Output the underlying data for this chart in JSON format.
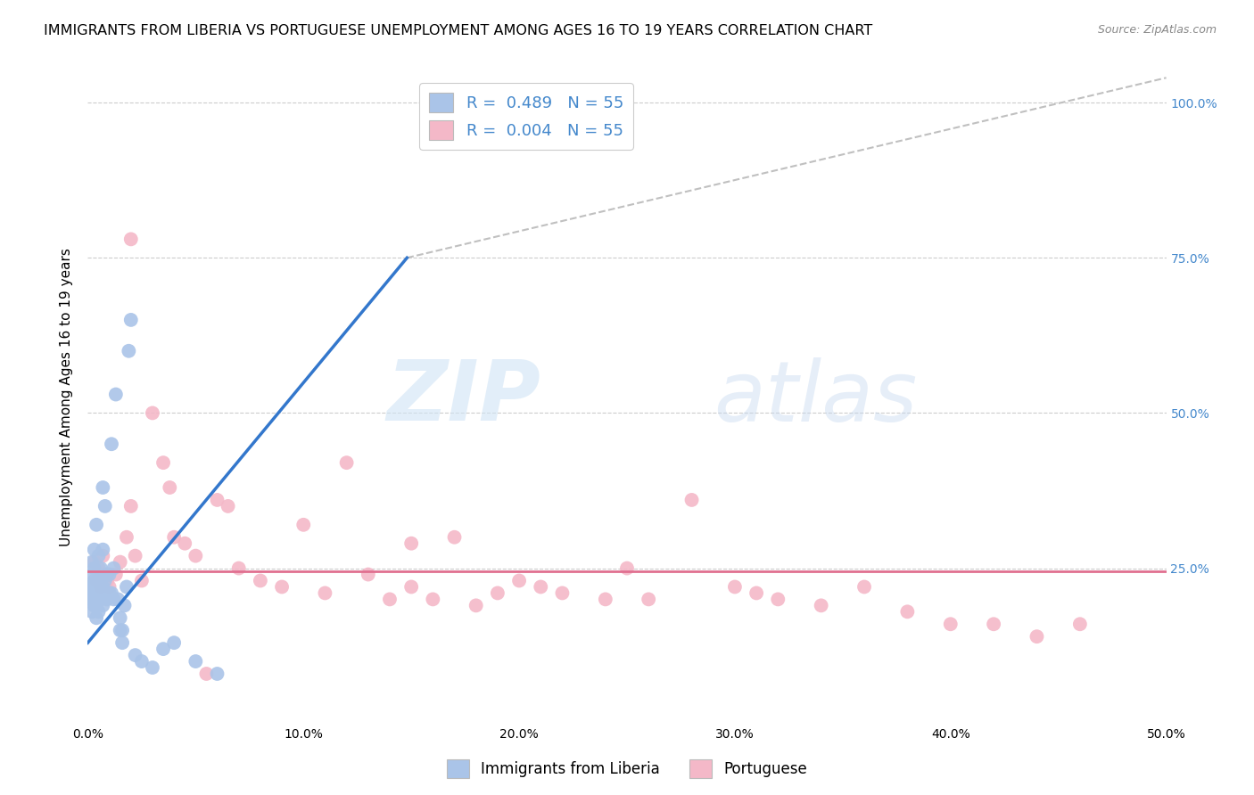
{
  "title": "IMMIGRANTS FROM LIBERIA VS PORTUGUESE UNEMPLOYMENT AMONG AGES 16 TO 19 YEARS CORRELATION CHART",
  "source": "Source: ZipAtlas.com",
  "ylabel": "Unemployment Among Ages 16 to 19 years",
  "xlim": [
    0,
    0.5
  ],
  "ylim": [
    0,
    1.05
  ],
  "xtick_labels": [
    "0.0%",
    "10.0%",
    "20.0%",
    "30.0%",
    "40.0%",
    "50.0%"
  ],
  "xtick_vals": [
    0,
    0.1,
    0.2,
    0.3,
    0.4,
    0.5
  ],
  "ytick_labels": [
    "100.0%",
    "75.0%",
    "50.0%",
    "25.0%"
  ],
  "ytick_vals": [
    1.0,
    0.75,
    0.5,
    0.25
  ],
  "legend_label1": "Immigrants from Liberia",
  "legend_label2": "Portuguese",
  "blue_R": 0.489,
  "pink_R": 0.004,
  "blue_N": 55,
  "pink_N": 55,
  "watermark_zip": "ZIP",
  "watermark_atlas": "atlas",
  "blue_scatter_x": [
    0.001,
    0.001,
    0.002,
    0.002,
    0.002,
    0.002,
    0.002,
    0.003,
    0.003,
    0.003,
    0.003,
    0.003,
    0.004,
    0.004,
    0.004,
    0.004,
    0.005,
    0.005,
    0.005,
    0.005,
    0.006,
    0.006,
    0.006,
    0.007,
    0.007,
    0.007,
    0.007,
    0.008,
    0.008,
    0.008,
    0.009,
    0.009,
    0.01,
    0.01,
    0.011,
    0.011,
    0.012,
    0.012,
    0.013,
    0.014,
    0.015,
    0.015,
    0.016,
    0.016,
    0.017,
    0.018,
    0.019,
    0.02,
    0.022,
    0.025,
    0.03,
    0.035,
    0.04,
    0.05,
    0.06
  ],
  "blue_scatter_y": [
    0.2,
    0.22,
    0.18,
    0.2,
    0.22,
    0.24,
    0.26,
    0.19,
    0.21,
    0.23,
    0.25,
    0.28,
    0.17,
    0.2,
    0.22,
    0.32,
    0.18,
    0.21,
    0.23,
    0.27,
    0.2,
    0.23,
    0.25,
    0.19,
    0.22,
    0.28,
    0.38,
    0.21,
    0.23,
    0.35,
    0.2,
    0.24,
    0.21,
    0.24,
    0.21,
    0.45,
    0.2,
    0.25,
    0.53,
    0.2,
    0.15,
    0.17,
    0.13,
    0.15,
    0.19,
    0.22,
    0.6,
    0.65,
    0.11,
    0.1,
    0.09,
    0.12,
    0.13,
    0.1,
    0.08
  ],
  "pink_scatter_x": [
    0.003,
    0.004,
    0.005,
    0.006,
    0.007,
    0.008,
    0.009,
    0.01,
    0.013,
    0.015,
    0.018,
    0.02,
    0.022,
    0.025,
    0.03,
    0.035,
    0.038,
    0.04,
    0.045,
    0.05,
    0.055,
    0.06,
    0.065,
    0.07,
    0.08,
    0.09,
    0.1,
    0.11,
    0.12,
    0.13,
    0.14,
    0.15,
    0.16,
    0.17,
    0.18,
    0.19,
    0.2,
    0.21,
    0.22,
    0.24,
    0.25,
    0.26,
    0.28,
    0.3,
    0.31,
    0.32,
    0.34,
    0.36,
    0.38,
    0.4,
    0.42,
    0.44,
    0.46,
    0.02,
    0.15
  ],
  "pink_scatter_y": [
    0.26,
    0.23,
    0.25,
    0.22,
    0.27,
    0.24,
    0.23,
    0.22,
    0.24,
    0.26,
    0.3,
    0.35,
    0.27,
    0.23,
    0.5,
    0.42,
    0.38,
    0.3,
    0.29,
    0.27,
    0.08,
    0.36,
    0.35,
    0.25,
    0.23,
    0.22,
    0.32,
    0.21,
    0.42,
    0.24,
    0.2,
    0.22,
    0.2,
    0.3,
    0.19,
    0.21,
    0.23,
    0.22,
    0.21,
    0.2,
    0.25,
    0.2,
    0.36,
    0.22,
    0.21,
    0.2,
    0.19,
    0.22,
    0.18,
    0.16,
    0.16,
    0.14,
    0.16,
    0.78,
    0.29
  ],
  "blue_line_x": [
    0.0,
    0.148
  ],
  "blue_line_y": [
    0.13,
    0.75
  ],
  "pink_line_y": 0.245,
  "diag_line_x": [
    0.148,
    0.5
  ],
  "diag_line_y": [
    0.75,
    1.04
  ],
  "grid_color": "#cccccc",
  "blue_color": "#aac4e8",
  "pink_color": "#f4b8c8",
  "blue_line_color": "#3377cc",
  "pink_line_color": "#e07090",
  "diag_line_color": "#c0c0c0",
  "background_color": "#ffffff",
  "title_fontsize": 11.5,
  "axis_label_fontsize": 11,
  "tick_fontsize": 10,
  "right_tick_color": "#4488cc"
}
